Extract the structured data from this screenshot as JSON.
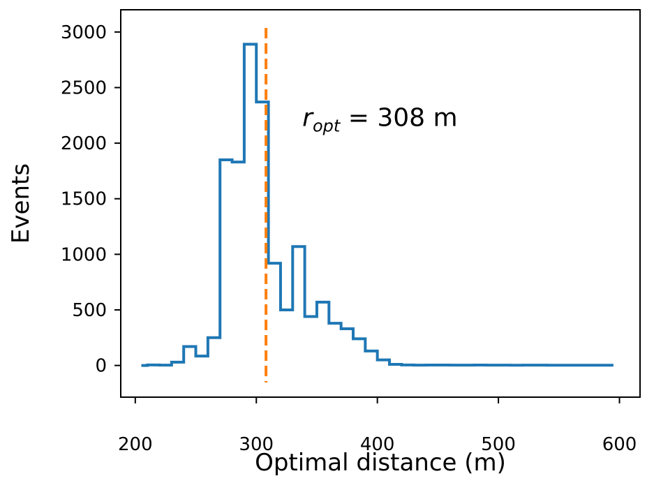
{
  "chart_data": {
    "type": "line",
    "style": "step-histogram",
    "xlabel": "Optimal distance (m)",
    "ylabel": "Events",
    "xlim": [
      188,
      617
    ],
    "ylim": [
      -285,
      3200
    ],
    "xticks": [
      "200",
      "300",
      "400",
      "500",
      "600"
    ],
    "yticks": [
      "0",
      "500",
      "1000",
      "1500",
      "2000",
      "2500",
      "3000"
    ],
    "grid": false,
    "series": [
      {
        "color": "#1f77b4",
        "bin_edges": [
          205,
          210,
          220,
          230,
          240,
          250,
          260,
          270,
          280,
          290,
          300,
          310,
          320,
          330,
          340,
          350,
          360,
          370,
          380,
          390,
          400,
          410,
          420,
          430,
          440,
          450,
          460,
          470,
          480,
          490,
          500,
          510,
          520,
          530,
          540,
          550,
          560,
          570,
          580,
          595
        ],
        "counts": [
          0,
          5,
          3,
          30,
          170,
          85,
          250,
          1850,
          1830,
          2890,
          2370,
          920,
          500,
          1070,
          440,
          570,
          380,
          330,
          240,
          130,
          50,
          10,
          5,
          3,
          4,
          4,
          3,
          3,
          4,
          3,
          3,
          2,
          3,
          3,
          2,
          2,
          2,
          2,
          2
        ]
      }
    ],
    "vline": {
      "x": 308,
      "color": "#ff7f0e",
      "style": "dashed"
    },
    "annotation": {
      "symbol": "r",
      "subscript": "opt",
      "text": " = 308 m",
      "x": 338,
      "y": 2230
    }
  }
}
